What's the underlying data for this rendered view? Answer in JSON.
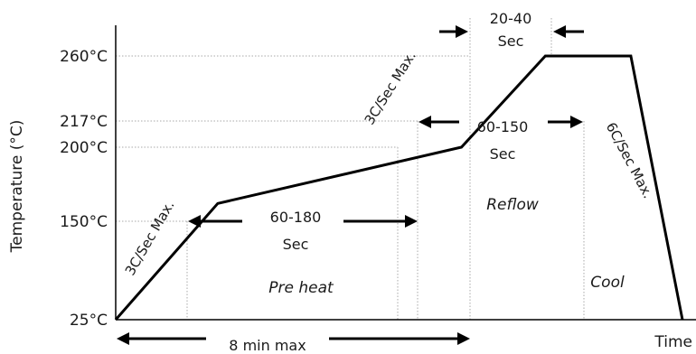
{
  "chart_data": {
    "type": "line",
    "title": "",
    "xlabel": "Time",
    "ylabel": "Temperature  (°C)",
    "y_ticks": [
      {
        "value": 25,
        "label": "25°C"
      },
      {
        "value": 150,
        "label": "150°C"
      },
      {
        "value": 200,
        "label": "200°C"
      },
      {
        "value": 217,
        "label": "217°C"
      },
      {
        "value": 260,
        "label": "260°C"
      }
    ],
    "series": [
      {
        "points": [
          {
            "t": 0,
            "y": 25
          },
          {
            "t": 0.18,
            "y": 162
          },
          {
            "t": 0.61,
            "y": 200
          },
          {
            "t": 0.758,
            "y": 260
          },
          {
            "t": 0.909,
            "y": 260
          },
          {
            "t": 1.0,
            "y": 25
          }
        ]
      }
    ],
    "annotations": {
      "ramp1": "3C/Sec Max.",
      "ramp2": "3C/Sec Max.",
      "ramp_down": "6C/Sec Max.",
      "peak_line1": "20-40",
      "peak_line2": "Sec",
      "reflow_line1": "60-150",
      "reflow_line2": "Sec",
      "preheat_time_line1": "60-180",
      "preheat_time_line2": "Sec",
      "phase_preheat": "Pre heat",
      "phase_reflow": "Reflow",
      "phase_cool": "Cool",
      "total_time": "8 min max"
    },
    "colors": {
      "line": "#000000",
      "guides": "#a8a8a8",
      "text": "#1a1a1a"
    }
  }
}
